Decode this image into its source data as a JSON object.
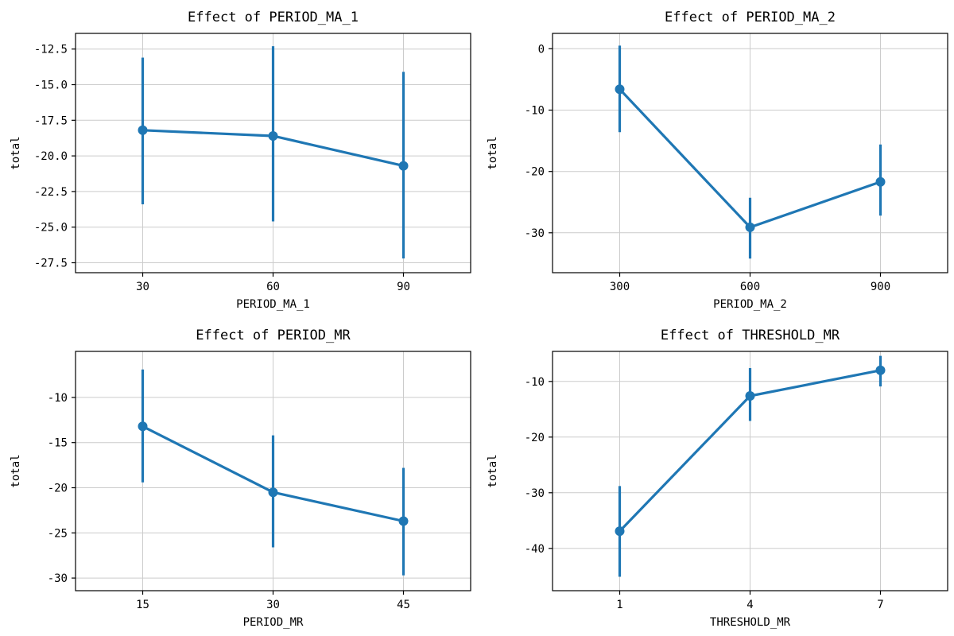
{
  "figure": {
    "background": "#ffffff",
    "accent_color": "#1f77b4",
    "grid_color": "#cccccc",
    "spine_color": "#000000"
  },
  "chart_data": [
    {
      "type": "line",
      "title": "Effect of PERIOD_MA_1",
      "xlabel": "PERIOD_MA_1",
      "ylabel": "total",
      "x": [
        30,
        60,
        90
      ],
      "xtick_labels": [
        "30",
        "60",
        "90"
      ],
      "y": [
        -18.2,
        -18.6,
        -20.7
      ],
      "err_high": [
        -13.1,
        -12.3,
        -14.1
      ],
      "err_low": [
        -23.4,
        -24.6,
        -27.2
      ],
      "yticks": [
        -12.5,
        -15.0,
        -17.5,
        -20.0,
        -22.5,
        -25.0,
        -27.5
      ],
      "ytick_labels": [
        "-12.5",
        "-15.0",
        "-17.5",
        "-20.0",
        "-22.5",
        "-25.0",
        "-27.5"
      ],
      "ylim": [
        -28.2,
        -11.4
      ],
      "grid": true,
      "legend": "none"
    },
    {
      "type": "line",
      "title": "Effect of PERIOD_MA_2",
      "xlabel": "PERIOD_MA_2",
      "ylabel": "total",
      "x": [
        300,
        600,
        900
      ],
      "xtick_labels": [
        "300",
        "600",
        "900"
      ],
      "y": [
        -6.6,
        -29.1,
        -21.7
      ],
      "err_high": [
        0.5,
        -24.3,
        -15.6
      ],
      "err_low": [
        -13.6,
        -34.2,
        -27.2
      ],
      "yticks": [
        0,
        -10,
        -20,
        -30
      ],
      "ytick_labels": [
        "0",
        "-10",
        "-20",
        "-30"
      ],
      "ylim": [
        -36.5,
        2.5
      ],
      "grid": true,
      "legend": "none"
    },
    {
      "type": "line",
      "title": "Effect of PERIOD_MR",
      "xlabel": "PERIOD_MR",
      "ylabel": "total",
      "x": [
        15,
        30,
        45
      ],
      "xtick_labels": [
        "15",
        "30",
        "45"
      ],
      "y": [
        -13.2,
        -20.5,
        -23.7
      ],
      "err_high": [
        -6.9,
        -14.2,
        -17.8
      ],
      "err_low": [
        -19.4,
        -26.6,
        -29.7
      ],
      "yticks": [
        -10,
        -15,
        -20,
        -25,
        -30
      ],
      "ytick_labels": [
        "-10",
        "-15",
        "-20",
        "-25",
        "-30"
      ],
      "ylim": [
        -31.4,
        -4.9
      ],
      "grid": true,
      "legend": "none"
    },
    {
      "type": "line",
      "title": "Effect of THRESHOLD_MR",
      "xlabel": "THRESHOLD_MR",
      "ylabel": "total",
      "x": [
        1,
        4,
        7
      ],
      "xtick_labels": [
        "1",
        "4",
        "7"
      ],
      "y": [
        -36.9,
        -12.6,
        -8.0
      ],
      "err_high": [
        -28.8,
        -7.6,
        -5.4
      ],
      "err_low": [
        -45.1,
        -17.1,
        -10.9
      ],
      "yticks": [
        -10,
        -20,
        -30,
        -40
      ],
      "ytick_labels": [
        "-10",
        "-20",
        "-30",
        "-40"
      ],
      "ylim": [
        -47.6,
        -4.6
      ],
      "grid": true,
      "legend": "none"
    }
  ]
}
